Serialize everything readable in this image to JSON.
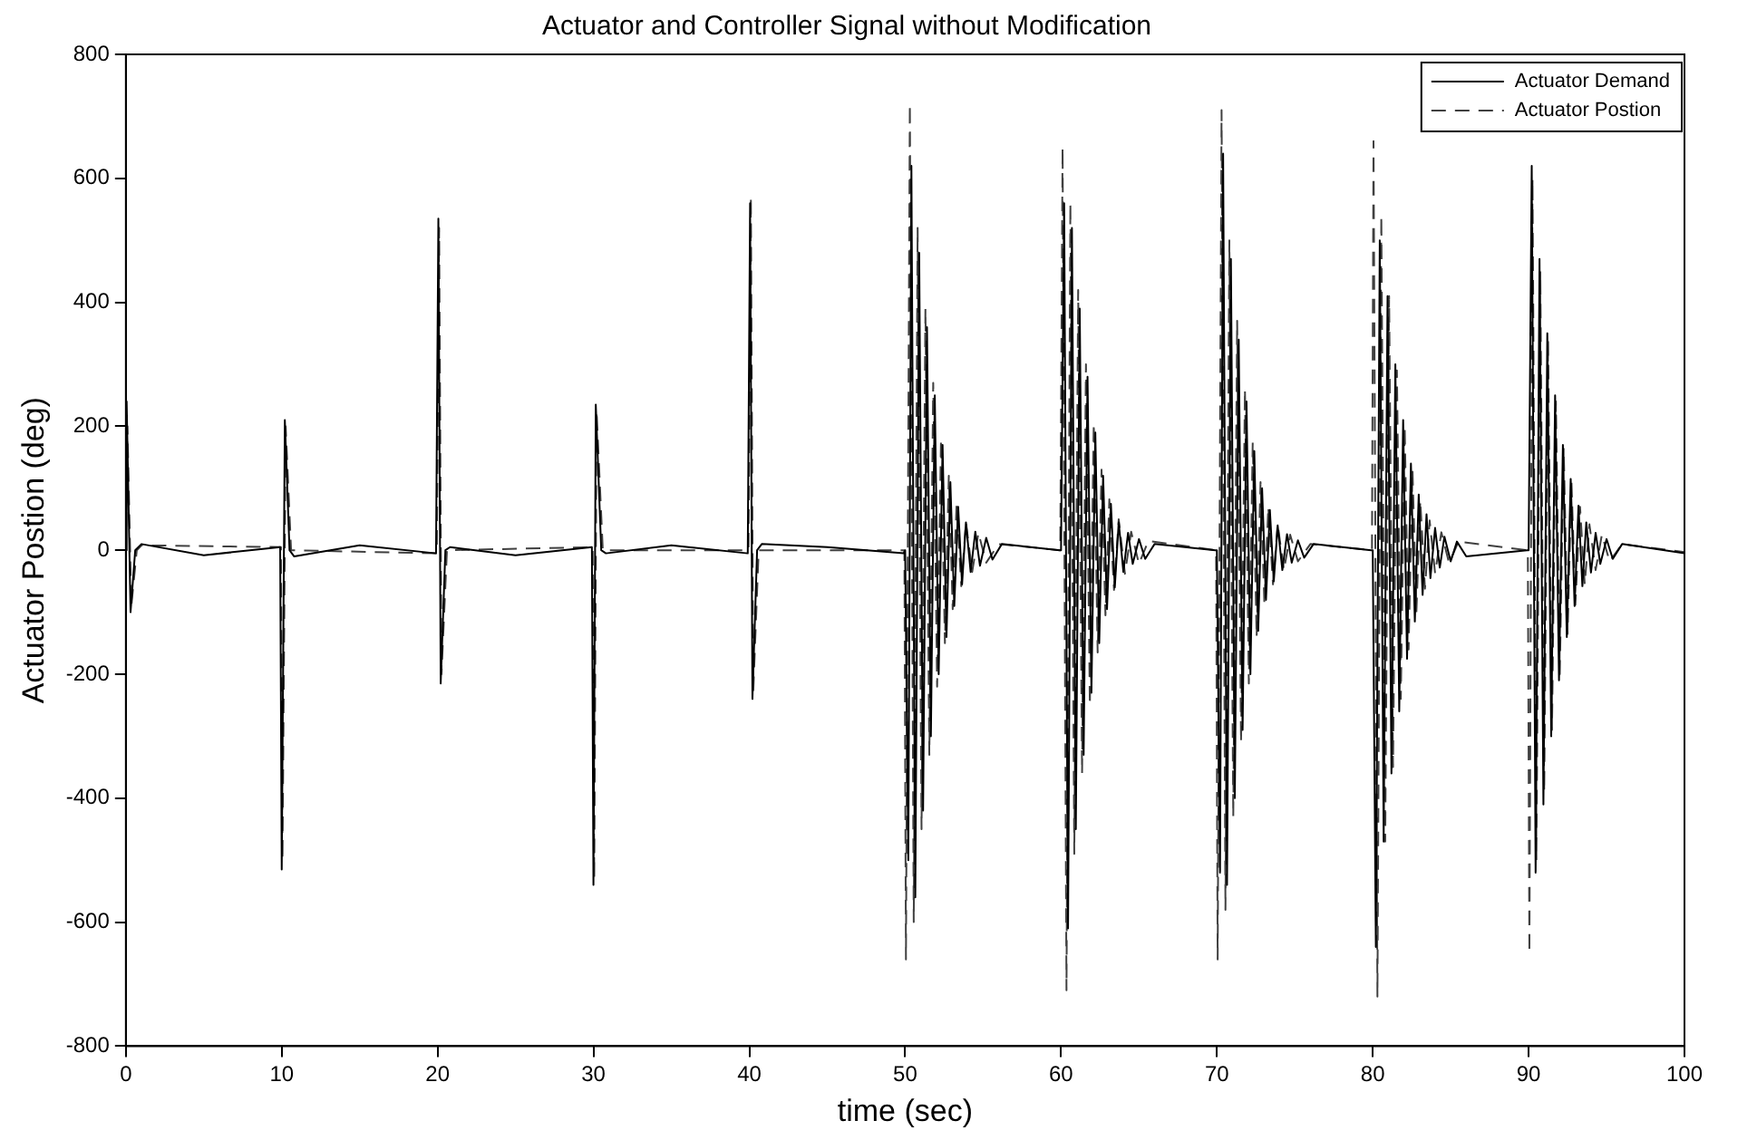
{
  "chart_data": {
    "type": "line",
    "title": "Actuator and Controller Signal without Modification",
    "xlabel": "time (sec)",
    "ylabel": "Actuator Postion (deg)",
    "xlim": [
      0,
      100
    ],
    "xticks": [
      0,
      10,
      20,
      30,
      40,
      50,
      60,
      70,
      80,
      90,
      100
    ],
    "ylim": [
      -800,
      800
    ],
    "yticks": [
      -800,
      -600,
      -400,
      -200,
      0,
      200,
      400,
      600,
      800
    ],
    "grid": false,
    "legend": "top right",
    "marker": "none",
    "series": [
      {
        "name": "Actuator Demand",
        "color": "#000000",
        "line_style": "solid",
        "x": [
          0,
          0.05,
          0.3,
          0.6,
          1,
          5,
          9.9,
          10.0,
          10.2,
          10.5,
          10.8,
          15,
          19.9,
          20.05,
          20.2,
          20.5,
          20.8,
          25,
          29.9,
          30.0,
          30.15,
          30.5,
          30.8,
          35,
          39.9,
          40.05,
          40.2,
          40.5,
          40.8,
          45,
          49.9,
          50.0,
          50.2,
          50.4,
          50.65,
          50.9,
          51.15,
          51.4,
          51.65,
          51.9,
          52.15,
          52.4,
          52.65,
          52.9,
          53.15,
          53.4,
          53.65,
          53.9,
          54.2,
          54.5,
          54.8,
          55.2,
          55.6,
          56.2,
          59.9,
          60.0,
          60.2,
          60.45,
          60.7,
          60.95,
          61.2,
          61.45,
          61.7,
          61.95,
          62.2,
          62.45,
          62.7,
          62.95,
          63.2,
          63.45,
          63.7,
          64.0,
          64.3,
          64.6,
          65.0,
          65.4,
          66.0,
          69.9,
          70.0,
          70.2,
          70.4,
          70.65,
          70.9,
          71.15,
          71.4,
          71.65,
          71.9,
          72.15,
          72.4,
          72.65,
          72.9,
          73.15,
          73.4,
          73.65,
          73.9,
          74.2,
          74.5,
          74.8,
          75.2,
          75.6,
          76.2,
          79.9,
          80.0,
          80.2,
          80.45,
          80.7,
          80.95,
          81.2,
          81.45,
          81.7,
          81.95,
          82.2,
          82.45,
          82.7,
          82.95,
          83.2,
          83.45,
          83.7,
          84.0,
          84.3,
          84.6,
          85.0,
          85.4,
          86.0,
          89.9,
          90.0,
          90.2,
          90.45,
          90.7,
          90.95,
          91.2,
          91.45,
          91.7,
          91.95,
          92.2,
          92.45,
          92.7,
          92.95,
          93.2,
          93.45,
          93.7,
          94.0,
          94.3,
          94.6,
          95.0,
          95.4,
          96.0,
          100
        ],
        "values": [
          0,
          240,
          -100,
          0,
          10,
          -8,
          5,
          -515,
          210,
          0,
          -10,
          8,
          -5,
          535,
          -215,
          0,
          5,
          -8,
          5,
          -540,
          235,
          0,
          -5,
          8,
          -5,
          560,
          -240,
          0,
          10,
          5,
          -5,
          0,
          -500,
          620,
          -560,
          480,
          -420,
          360,
          -300,
          250,
          -200,
          170,
          -140,
          110,
          -90,
          70,
          -55,
          45,
          -35,
          30,
          -25,
          20,
          -15,
          10,
          0,
          0,
          560,
          -610,
          520,
          -450,
          390,
          -330,
          280,
          -230,
          190,
          -150,
          120,
          -95,
          75,
          -60,
          45,
          -35,
          28,
          -22,
          18,
          -14,
          10,
          0,
          0,
          -520,
          640,
          -540,
          470,
          -400,
          340,
          -290,
          240,
          -200,
          160,
          -130,
          100,
          -80,
          65,
          -50,
          40,
          -32,
          26,
          -20,
          16,
          -12,
          10,
          0,
          0,
          -640,
          500,
          -470,
          410,
          -360,
          300,
          -260,
          210,
          -175,
          140,
          -115,
          90,
          -72,
          58,
          -45,
          36,
          -28,
          22,
          -18,
          14,
          -10,
          0,
          0,
          620,
          -520,
          470,
          -410,
          350,
          -300,
          250,
          -210,
          170,
          -140,
          115,
          -90,
          72,
          -58,
          45,
          -36,
          28,
          -22,
          18,
          -14,
          10,
          -5
        ]
      },
      {
        "name": "Actuator Postion",
        "color": "#404040",
        "line_style": "dashed",
        "x": [
          0,
          0.1,
          0.35,
          0.7,
          1,
          9.95,
          10.05,
          10.25,
          10.6,
          19.95,
          20.1,
          20.25,
          20.6,
          29.95,
          30.05,
          30.2,
          30.6,
          39.95,
          40.1,
          40.25,
          40.6,
          49.95,
          50.05,
          50.3,
          50.55,
          50.8,
          51.05,
          51.3,
          51.55,
          51.8,
          52.05,
          52.3,
          52.55,
          52.8,
          53.05,
          53.3,
          53.6,
          53.9,
          54.3,
          54.7,
          55.2,
          56,
          59.95,
          60.1,
          60.35,
          60.6,
          60.85,
          61.1,
          61.35,
          61.6,
          61.85,
          62.1,
          62.35,
          62.6,
          62.85,
          63.1,
          63.4,
          63.7,
          64.1,
          64.5,
          65,
          65.6,
          69.95,
          70.05,
          70.3,
          70.55,
          70.8,
          71.05,
          71.3,
          71.55,
          71.8,
          72.05,
          72.3,
          72.55,
          72.8,
          73.05,
          73.3,
          73.6,
          73.9,
          74.3,
          74.7,
          75.2,
          76,
          79.95,
          80.05,
          80.3,
          80.55,
          80.8,
          81.05,
          81.3,
          81.55,
          81.8,
          82.05,
          82.3,
          82.55,
          82.8,
          83.05,
          83.35,
          83.65,
          84.0,
          84.4,
          84.9,
          85.5,
          89.95,
          90.05,
          90.25,
          90.5,
          90.75,
          91.0,
          91.25,
          91.5,
          91.75,
          92.0,
          92.25,
          92.5,
          92.75,
          93.0,
          93.3,
          93.6,
          93.9,
          94.3,
          94.7,
          95.2,
          96,
          100
        ],
        "values": [
          0,
          200,
          -90,
          0,
          8,
          5,
          -500,
          200,
          0,
          -5,
          520,
          -200,
          0,
          5,
          -530,
          225,
          0,
          0,
          570,
          -230,
          0,
          0,
          -660,
          720,
          -600,
          520,
          -450,
          390,
          -330,
          270,
          -220,
          180,
          -150,
          120,
          -95,
          75,
          -58,
          45,
          -35,
          28,
          -20,
          10,
          0,
          650,
          -710,
          560,
          -490,
          420,
          -360,
          300,
          -250,
          205,
          -165,
          130,
          -105,
          82,
          -64,
          50,
          -38,
          30,
          -22,
          15,
          0,
          -660,
          710,
          -580,
          500,
          -430,
          370,
          -310,
          260,
          -215,
          175,
          -140,
          110,
          -88,
          70,
          -55,
          42,
          -32,
          25,
          -18,
          10,
          0,
          660,
          -720,
          540,
          -470,
          410,
          -350,
          290,
          -240,
          200,
          -160,
          130,
          -100,
          80,
          -62,
          48,
          -37,
          29,
          -21,
          14,
          0,
          -650,
          600,
          -500,
          450,
          -390,
          340,
          -290,
          240,
          -200,
          165,
          -135,
          110,
          -88,
          70,
          -55,
          42,
          -32,
          25,
          -18,
          10,
          -3
        ]
      }
    ]
  }
}
